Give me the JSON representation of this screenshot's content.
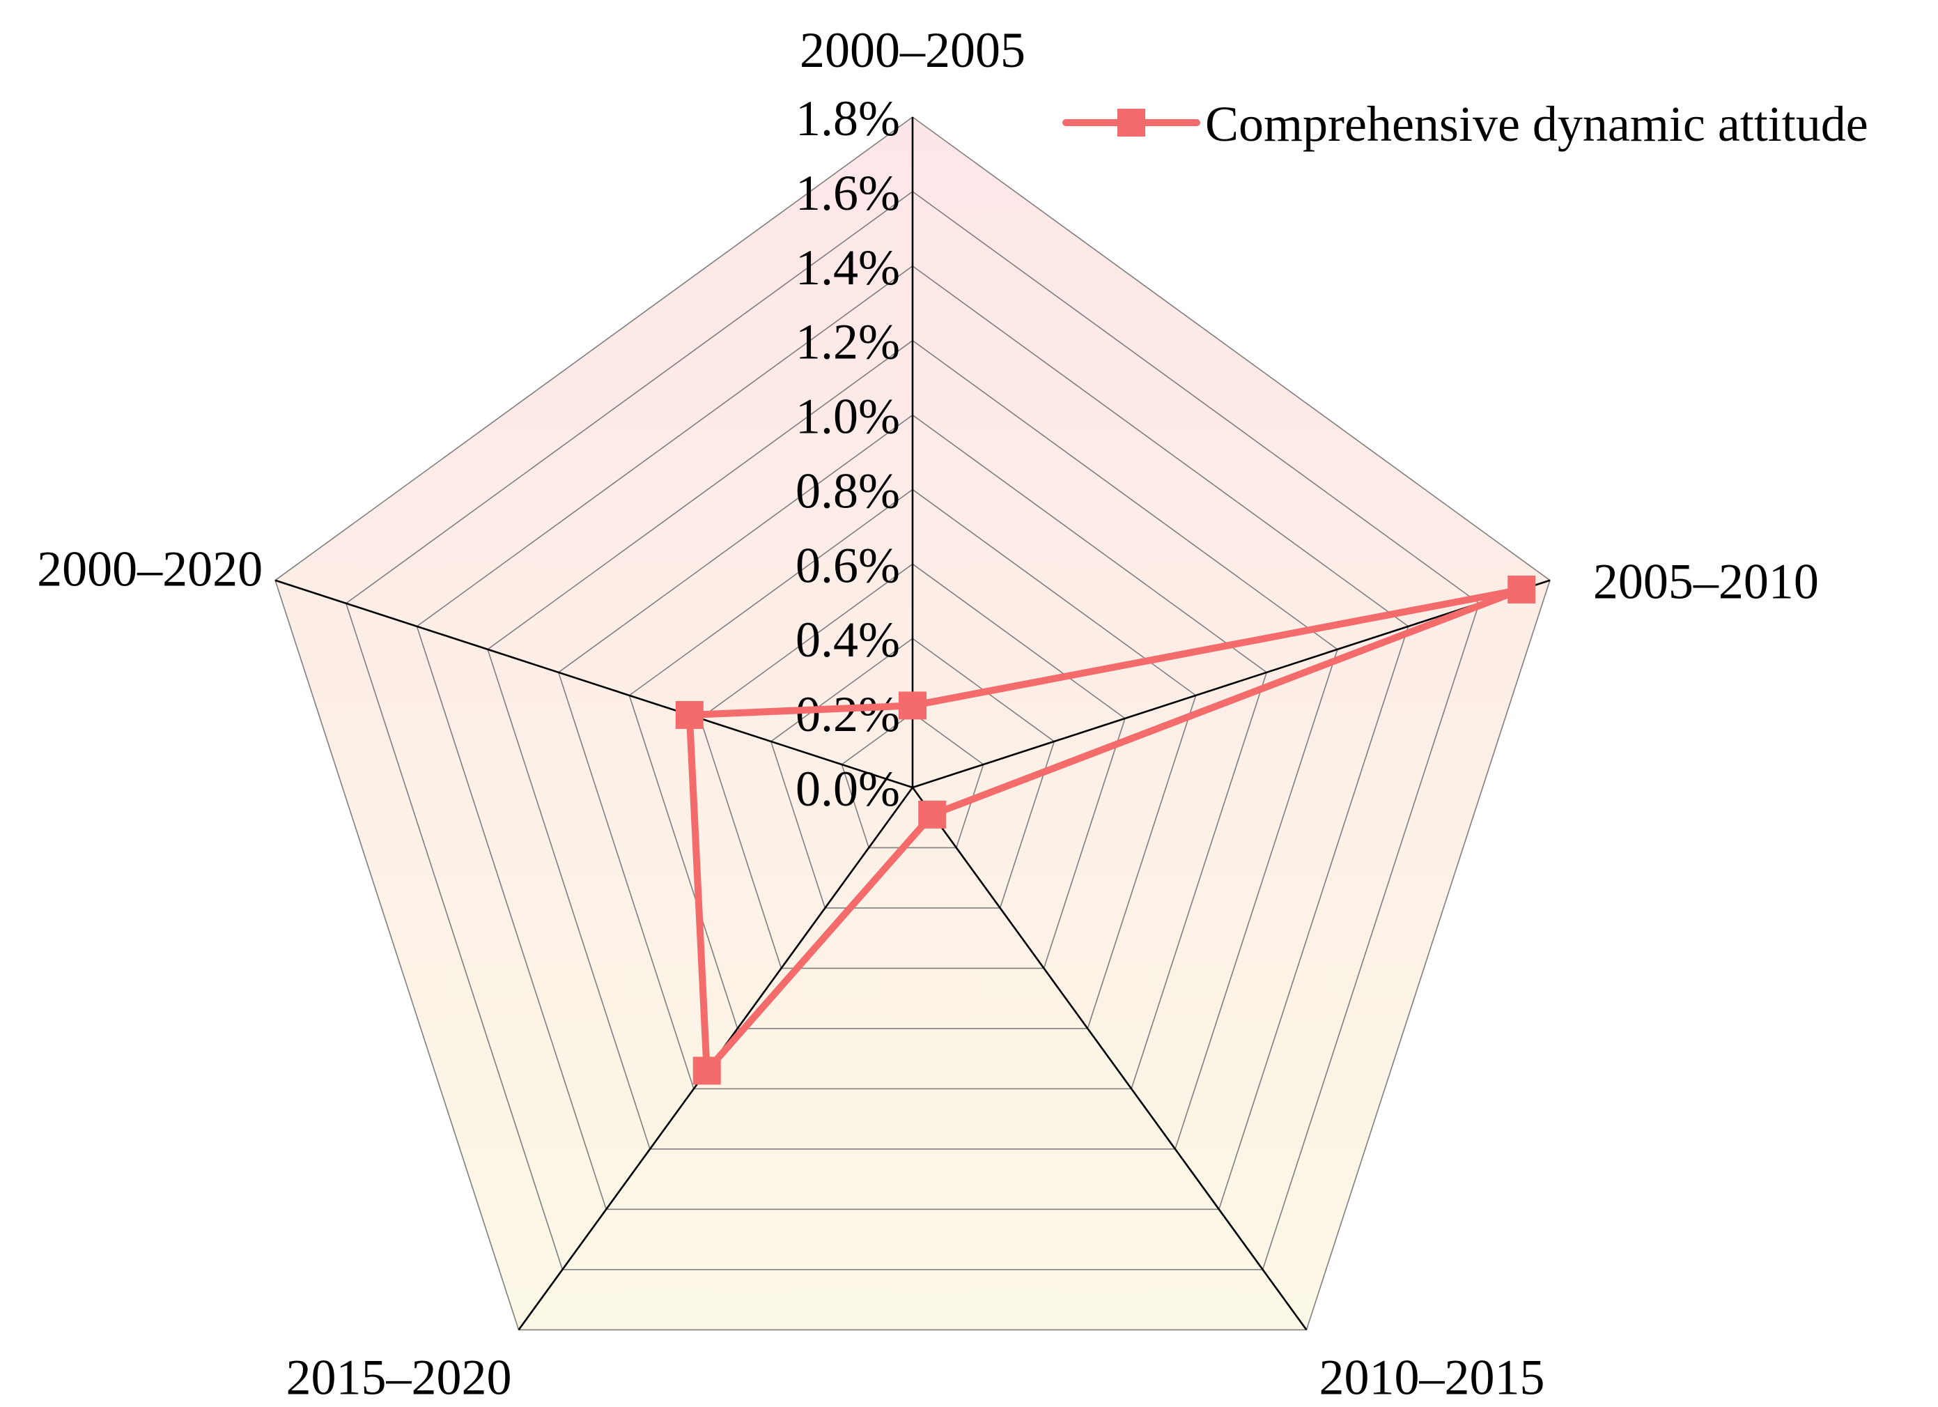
{
  "chart_data": {
    "type": "radar",
    "axes": [
      "2000–2005",
      "2005–2010",
      "2010–2015",
      "2015–2020",
      "2000–2020"
    ],
    "r_ticks": [
      "0.0%",
      "0.2%",
      "0.4%",
      "0.6%",
      "0.8%",
      "1.0%",
      "1.2%",
      "1.4%",
      "1.6%",
      "1.8%"
    ],
    "r_range": [
      0,
      1.8
    ],
    "series": [
      {
        "name": "Comprehensive dynamic attitude",
        "values": [
          0.22,
          1.72,
          0.09,
          0.94,
          0.63
        ],
        "color": "#f46b6b",
        "marker": "square"
      }
    ],
    "legend_position": "top-right",
    "grid": true,
    "background_gradient": [
      "#fde6e8",
      "#fcf8e6"
    ],
    "grid_color": "#7f7f7f",
    "spoke_color": "#000000"
  }
}
